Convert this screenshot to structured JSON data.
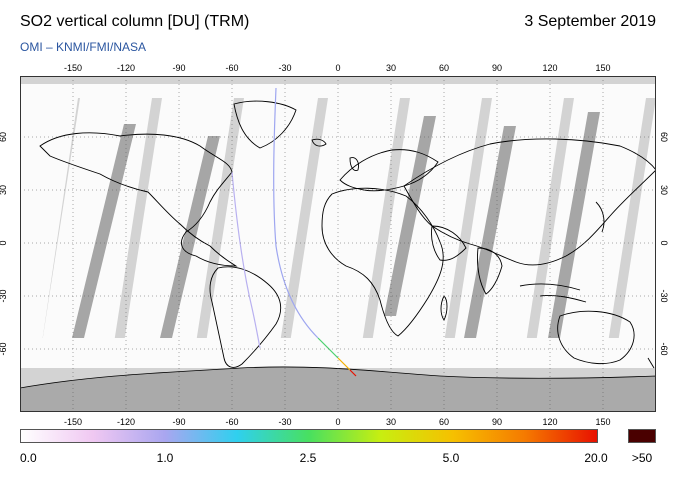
{
  "title": "SO2 vertical column [DU] (TRM)",
  "date": "3 September 2019",
  "credit": "OMI  –  KNMI/FMI/NASA",
  "lon_ticks": [
    "-150",
    "-120",
    "-90",
    "-60",
    "-30",
    "0",
    "30",
    "60",
    "90",
    "120",
    "150"
  ],
  "lat_ticks": [
    "60",
    "30",
    "0",
    "-30",
    "-60"
  ],
  "colorbar": {
    "labels": [
      "0.0",
      "1.0",
      "2.5",
      "5.0",
      "20.0"
    ],
    "over_label": ">50",
    "over_color": "#4a0000",
    "gradient": [
      "#ffffff",
      "#f0c8f2",
      "#a9a6f0",
      "#2fd0ef",
      "#48e060",
      "#c8ee10",
      "#f6c000",
      "#f57a00",
      "#e81100"
    ]
  },
  "map_colors": {
    "ocean_background": "#d3d3d3",
    "no_data_stripe": "#a6a6a6",
    "antarctica": "#aaaaaa",
    "observed": "#fbfbfb",
    "coastline": "#000000"
  }
}
